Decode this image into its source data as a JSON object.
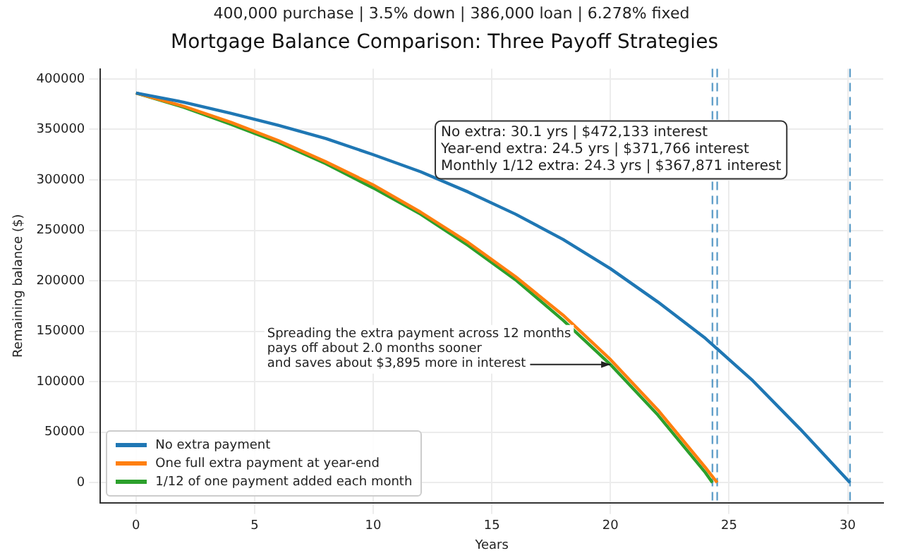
{
  "chart_data": {
    "type": "line",
    "title": "Mortgage Balance Comparison: Three Payoff Strategies",
    "subtitle": "400,000 purchase | 3.5% down | 386,000 loan | 6.278% fixed",
    "xlabel": "Years",
    "ylabel": "Remaining balance ($)",
    "series": [
      {
        "name": "No extra payment",
        "color": "#1f77b4",
        "x": [
          0,
          2,
          4,
          6,
          8,
          10,
          12,
          14,
          16,
          18,
          20,
          22,
          24,
          26,
          28,
          30.1
        ],
        "values": [
          386000,
          377000,
          366000,
          354000,
          341000,
          325000,
          308000,
          288000,
          266000,
          241000,
          212000,
          179000,
          143000,
          101000,
          53000,
          0
        ]
      },
      {
        "name": "One full extra payment at year-end",
        "color": "#ff7f0e",
        "x": [
          0,
          2,
          4,
          6,
          8,
          10,
          12,
          14,
          16,
          18,
          20,
          22,
          24,
          24.5
        ],
        "values": [
          386000,
          373000,
          357000,
          339000,
          318000,
          295000,
          268000,
          238000,
          204000,
          166000,
          122000,
          72000,
          15000,
          0
        ]
      },
      {
        "name": "1/12 of one payment added each month",
        "color": "#2ca02c",
        "x": [
          0,
          2,
          4,
          6,
          8,
          10,
          12,
          14,
          16,
          18,
          20,
          22,
          24,
          24.3
        ],
        "values": [
          386000,
          372000,
          355000,
          337000,
          316000,
          292000,
          266000,
          235000,
          201000,
          161000,
          117000,
          67000,
          10000,
          0
        ]
      }
    ],
    "ref_lines": [
      {
        "axis": "x",
        "value": 30.1,
        "color": "#1f77b4",
        "line_style": "dashed"
      },
      {
        "axis": "x",
        "value": 24.5,
        "color": "#1f77b4",
        "line_style": "dashed"
      },
      {
        "axis": "x",
        "value": 24.3,
        "color": "#1f77b4",
        "line_style": "dashed"
      }
    ],
    "annotations": [
      "No extra: 30.1 yrs | $472,133 interest\nYear-end extra: 24.5 yrs | $371,766 interest\nMonthly 1/12 extra: 24.3 yrs | $367,871 interest",
      {
        "text": "Spreading the extra payment across 12 months\npays off about 2.0 months sooner\nand saves about $3,895 more in interest",
        "x": 20,
        "y": 117000
      }
    ],
    "xlim": [
      -1.5,
      31.5
    ],
    "xticks": [
      0,
      5,
      10,
      15,
      20,
      25,
      30
    ],
    "ylim": [
      -20000,
      410000
    ],
    "yticks": [
      0,
      50000,
      100000,
      150000,
      200000,
      250000,
      300000,
      350000,
      400000
    ],
    "grid": true,
    "legend": "bottom left",
    "marker": "none",
    "line_style": "solid"
  }
}
